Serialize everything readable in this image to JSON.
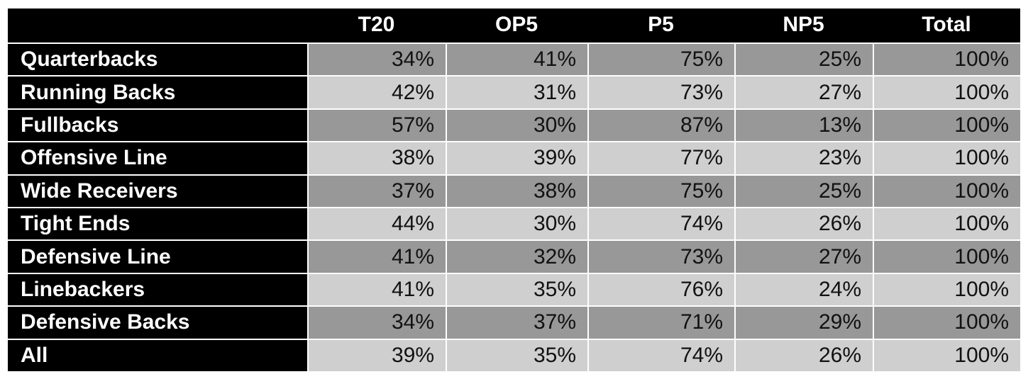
{
  "chart_data": {
    "type": "table",
    "columns": [
      "",
      "T20",
      "OP5",
      "P5",
      "NP5",
      "Total"
    ],
    "rows": [
      {
        "label": "Quarterbacks",
        "values": [
          "34%",
          "41%",
          "75%",
          "25%",
          "100%"
        ]
      },
      {
        "label": "Running Backs",
        "values": [
          "42%",
          "31%",
          "73%",
          "27%",
          "100%"
        ]
      },
      {
        "label": "Fullbacks",
        "values": [
          "57%",
          "30%",
          "87%",
          "13%",
          "100%"
        ]
      },
      {
        "label": "Offensive Line",
        "values": [
          "38%",
          "39%",
          "77%",
          "23%",
          "100%"
        ]
      },
      {
        "label": "Wide Receivers",
        "values": [
          "37%",
          "38%",
          "75%",
          "25%",
          "100%"
        ]
      },
      {
        "label": "Tight Ends",
        "values": [
          "44%",
          "30%",
          "74%",
          "26%",
          "100%"
        ]
      },
      {
        "label": "Defensive Line",
        "values": [
          "41%",
          "32%",
          "73%",
          "27%",
          "100%"
        ]
      },
      {
        "label": "Linebackers",
        "values": [
          "41%",
          "35%",
          "76%",
          "24%",
          "100%"
        ]
      },
      {
        "label": "Defensive Backs",
        "values": [
          "34%",
          "37%",
          "71%",
          "29%",
          "100%"
        ]
      },
      {
        "label": "All",
        "values": [
          "39%",
          "35%",
          "74%",
          "26%",
          "100%"
        ]
      }
    ],
    "colors": {
      "header_bg": "#000000",
      "header_text": "#ffffff",
      "row_label_bg": "#000000",
      "row_label_text": "#ffffff",
      "cell_dark": "#989898",
      "cell_light": "#cfcfcf",
      "cell_text": "#111111",
      "divider": "#ffffff"
    }
  }
}
